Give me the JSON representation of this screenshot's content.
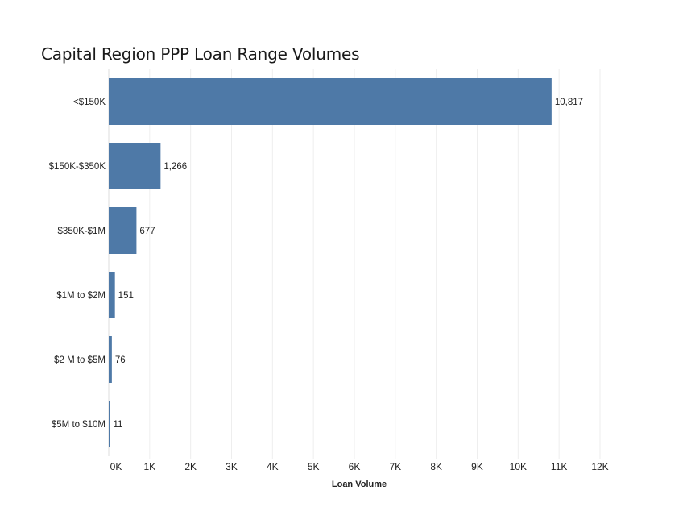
{
  "chart_data": {
    "type": "bar",
    "orientation": "horizontal",
    "title": "Capital Region PPP Loan Range Volumes",
    "xlabel": "Loan Volume",
    "ylabel": "",
    "categories": [
      "<$150K",
      "$150K-$350K",
      "$350K-$1M",
      "$1M to $2M",
      "$2 M to $5M",
      "$5M to $10M"
    ],
    "values": [
      10817,
      1266,
      677,
      151,
      76,
      11
    ],
    "value_labels": [
      "10,817",
      "1,266",
      "677",
      "151",
      "76",
      "11"
    ],
    "xlim": [
      0,
      12000
    ],
    "x_ticks": [
      0,
      1000,
      2000,
      3000,
      4000,
      5000,
      6000,
      7000,
      8000,
      9000,
      10000,
      11000,
      12000
    ],
    "x_tick_labels": [
      "0K",
      "1K",
      "2K",
      "3K",
      "4K",
      "5K",
      "6K",
      "7K",
      "8K",
      "9K",
      "10K",
      "11K",
      "12K"
    ],
    "grid": true,
    "legend": "none",
    "bar_color": "#4e79a7"
  }
}
